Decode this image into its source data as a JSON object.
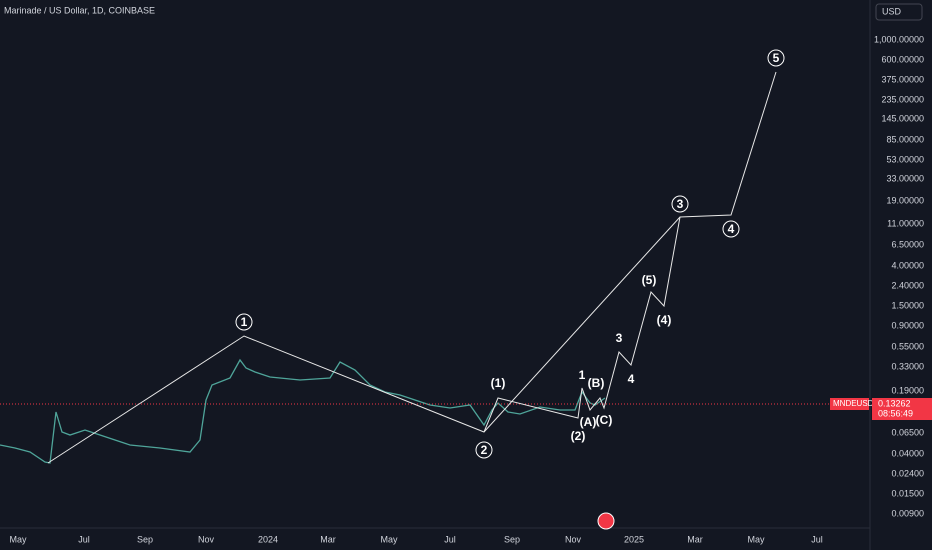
{
  "header": {
    "title": "Marinade / US Dollar, 1D, COINBASE",
    "currency": "USD"
  },
  "price_axis": [
    "1,000.00000",
    "600.00000",
    "375.00000",
    "235.00000",
    "145.00000",
    "85.00000",
    "53.00000",
    "33.00000",
    "19.00000",
    "11.00000",
    "6.50000",
    "4.00000",
    "2.40000",
    "1.50000",
    "0.90000",
    "0.55000",
    "0.33000",
    "0.19000",
    "0.06500",
    "0.04000",
    "0.02400",
    "0.01500",
    "0.00900"
  ],
  "time_axis": [
    "May",
    "Jul",
    "Sep",
    "Nov",
    "2024",
    "Mar",
    "May",
    "Jul",
    "Sep",
    "Nov",
    "2025",
    "Mar",
    "May",
    "Jul"
  ],
  "last_price": {
    "symbol": "MNDEUSD",
    "price": "0.13262",
    "countdown": "08:56:49"
  },
  "wave_labels": [
    "1",
    "2",
    "(1)",
    "(2)",
    "1",
    "(B)",
    "(A)",
    "(C)",
    "3",
    "4",
    "(5)",
    "(4)",
    "3",
    "4",
    "5"
  ]
}
